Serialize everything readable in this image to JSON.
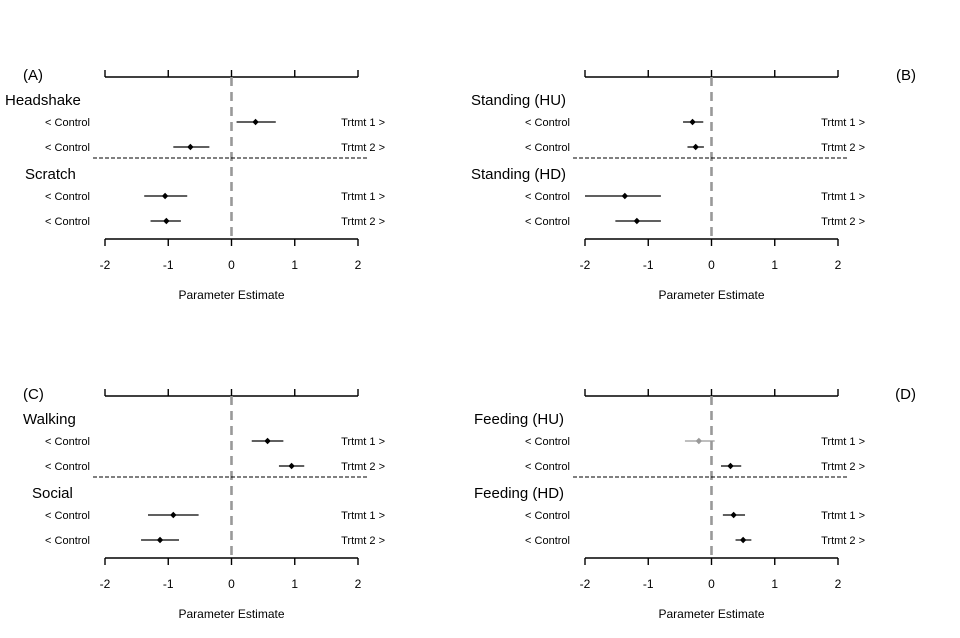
{
  "chart_data": [
    {
      "type": "forest",
      "panel_label": "(A)",
      "xlabel": "Parameter Estimate",
      "xlim": [
        -2,
        2
      ],
      "xticks": [
        "-2",
        "-1",
        "0",
        "1",
        "2"
      ],
      "reference_line": 0,
      "groups": [
        {
          "name": "Headshake",
          "rows": [
            {
              "left_label": "< Control",
              "right_label": "Trtmt 1 >",
              "estimate": 0.38,
              "lower": 0.08,
              "upper": 0.7,
              "muted": false
            },
            {
              "left_label": "< Control",
              "right_label": "Trtmt 2 >",
              "estimate": -0.65,
              "lower": -0.92,
              "upper": -0.35,
              "muted": false
            }
          ]
        },
        {
          "name": "Scratch",
          "rows": [
            {
              "left_label": "< Control",
              "right_label": "Trtmt 1 >",
              "estimate": -1.05,
              "lower": -1.38,
              "upper": -0.7,
              "muted": false
            },
            {
              "left_label": "< Control",
              "right_label": "Trtmt 2 >",
              "estimate": -1.03,
              "lower": -1.28,
              "upper": -0.8,
              "muted": false
            }
          ]
        }
      ]
    },
    {
      "type": "forest",
      "panel_label": "(B)",
      "xlabel": "Parameter Estimate",
      "xlim": [
        -2,
        2
      ],
      "xticks": [
        "-2",
        "-1",
        "0",
        "1",
        "2"
      ],
      "reference_line": 0,
      "groups": [
        {
          "name": "Standing (HU)",
          "rows": [
            {
              "left_label": "< Control",
              "right_label": "Trtmt 1 >",
              "estimate": -0.3,
              "lower": -0.45,
              "upper": -0.13,
              "muted": false
            },
            {
              "left_label": "< Control",
              "right_label": "Trtmt 2 >",
              "estimate": -0.25,
              "lower": -0.38,
              "upper": -0.12,
              "muted": false
            }
          ]
        },
        {
          "name": "Standing (HD)",
          "rows": [
            {
              "left_label": "< Control",
              "right_label": "Trtmt 1 >",
              "estimate": -1.37,
              "lower": -2.0,
              "upper": -0.8,
              "muted": false
            },
            {
              "left_label": "< Control",
              "right_label": "Trtmt 2 >",
              "estimate": -1.18,
              "lower": -1.52,
              "upper": -0.8,
              "muted": false
            }
          ]
        }
      ]
    },
    {
      "type": "forest",
      "panel_label": "(C)",
      "xlabel": "Parameter Estimate",
      "xlim": [
        -2,
        2
      ],
      "xticks": [
        "-2",
        "-1",
        "0",
        "1",
        "2"
      ],
      "reference_line": 0,
      "groups": [
        {
          "name": "Walking",
          "rows": [
            {
              "left_label": "< Control",
              "right_label": "Trtmt 1 >",
              "estimate": 0.57,
              "lower": 0.32,
              "upper": 0.82,
              "muted": false
            },
            {
              "left_label": "< Control",
              "right_label": "Trtmt 2 >",
              "estimate": 0.95,
              "lower": 0.75,
              "upper": 1.15,
              "muted": false
            }
          ]
        },
        {
          "name": "Social",
          "rows": [
            {
              "left_label": "< Control",
              "right_label": "Trtmt 1 >",
              "estimate": -0.92,
              "lower": -1.32,
              "upper": -0.52,
              "muted": false
            },
            {
              "left_label": "< Control",
              "right_label": "Trtmt 2 >",
              "estimate": -1.13,
              "lower": -1.43,
              "upper": -0.83,
              "muted": false
            }
          ]
        }
      ]
    },
    {
      "type": "forest",
      "panel_label": "(D)",
      "xlabel": "Parameter Estimate",
      "xlim": [
        -2,
        2
      ],
      "xticks": [
        "-2",
        "-1",
        "0",
        "1",
        "2"
      ],
      "reference_line": 0,
      "groups": [
        {
          "name": "Feeding (HU)",
          "rows": [
            {
              "left_label": "< Control",
              "right_label": "Trtmt 1 >",
              "estimate": -0.2,
              "lower": -0.42,
              "upper": 0.05,
              "muted": true
            },
            {
              "left_label": "< Control",
              "right_label": "Trtmt 2 >",
              "estimate": 0.3,
              "lower": 0.15,
              "upper": 0.47,
              "muted": false
            }
          ]
        },
        {
          "name": "Feeding (HD)",
          "rows": [
            {
              "left_label": "< Control",
              "right_label": "Trtmt 1 >",
              "estimate": 0.35,
              "lower": 0.18,
              "upper": 0.53,
              "muted": false
            },
            {
              "left_label": "< Control",
              "right_label": "Trtmt 2 >",
              "estimate": 0.5,
              "lower": 0.38,
              "upper": 0.63,
              "muted": false
            }
          ]
        }
      ]
    }
  ],
  "colors": {
    "point": "#000000",
    "point_muted": "#999999",
    "reference_line": "#999999",
    "axis": "#000000"
  }
}
